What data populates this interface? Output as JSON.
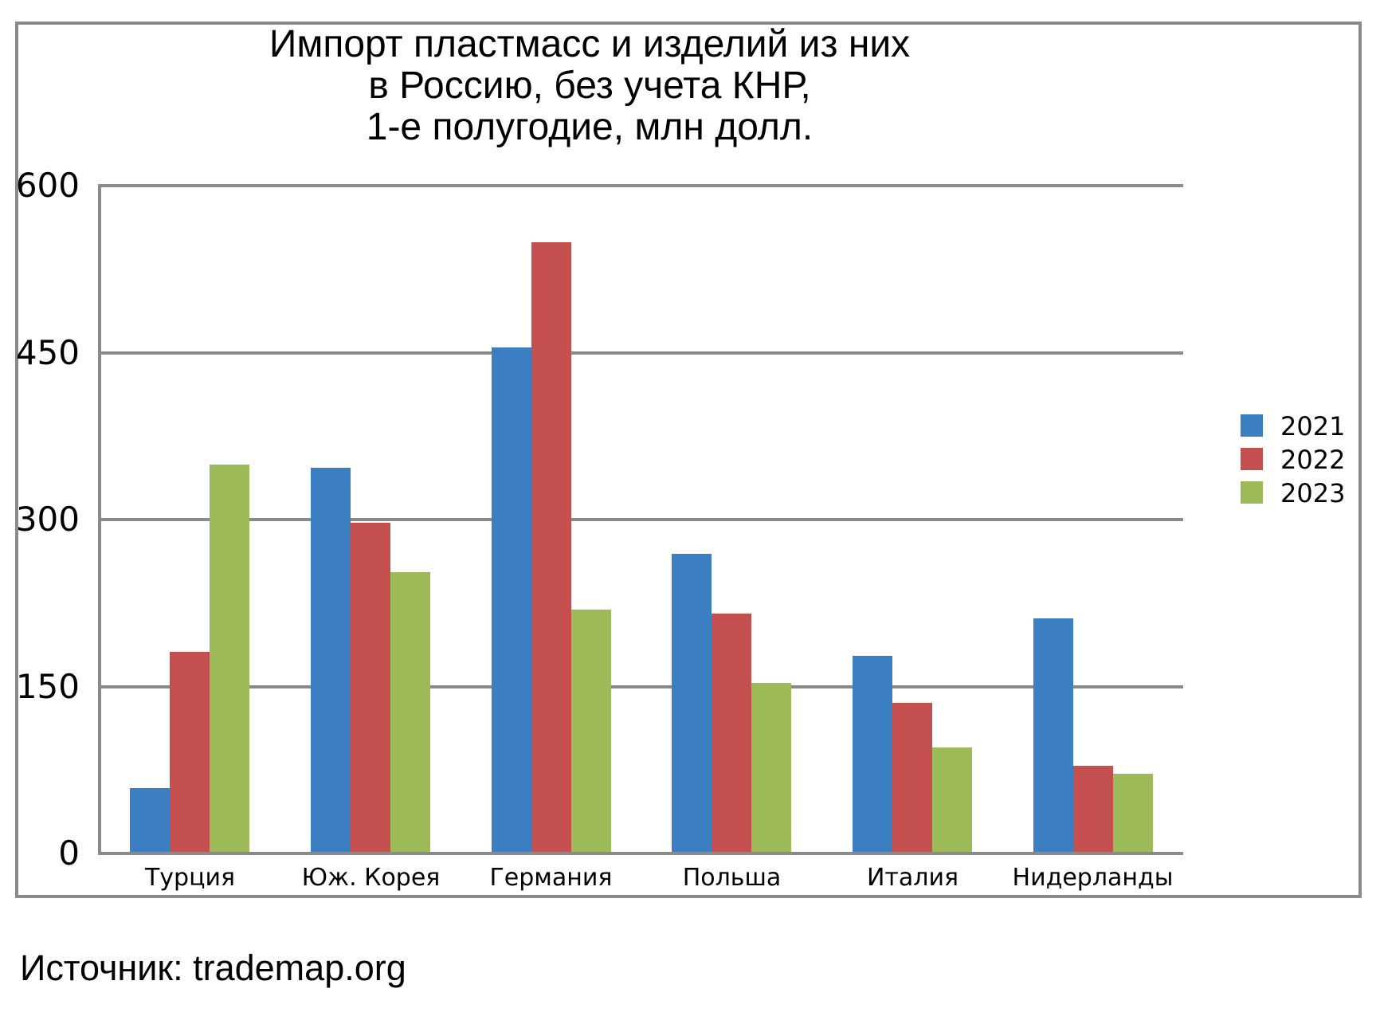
{
  "title": {
    "line1": "Импорт пластмасс и изделий из них",
    "line2": "в Россию, без учета КНР,",
    "line3": "1-е полугодие, млн долл."
  },
  "source": "Источник: trademap.org",
  "colors": {
    "series_2021": "#3B7FC2",
    "series_2022": "#C4504F",
    "series_2023": "#9DBA59",
    "gridline": "#8a8a8a",
    "frame_border": "#8a8a8a",
    "background": "#ffffff"
  },
  "chart_data": {
    "type": "bar",
    "title": "Импорт пластмасс и изделий из них в Россию, без учета КНР, 1-е полугодие, млн долл.",
    "categories": [
      "Турция",
      "Юж. Корея",
      "Германия",
      "Польша",
      "Италия",
      "Нидерланды"
    ],
    "series": [
      {
        "name": "2021",
        "color": "#3B7FC2",
        "values": [
          57,
          345,
          453,
          268,
          176,
          210
        ]
      },
      {
        "name": "2022",
        "color": "#C4504F",
        "values": [
          180,
          296,
          548,
          214,
          134,
          77
        ]
      },
      {
        "name": "2023",
        "color": "#9DBA59",
        "values": [
          348,
          251,
          218,
          152,
          94,
          70
        ]
      }
    ],
    "xlabel": "",
    "ylabel": "",
    "ylim": [
      0,
      600
    ],
    "yticks": [
      0,
      150,
      300,
      450,
      600
    ],
    "grid": true,
    "legend_position": "right"
  }
}
